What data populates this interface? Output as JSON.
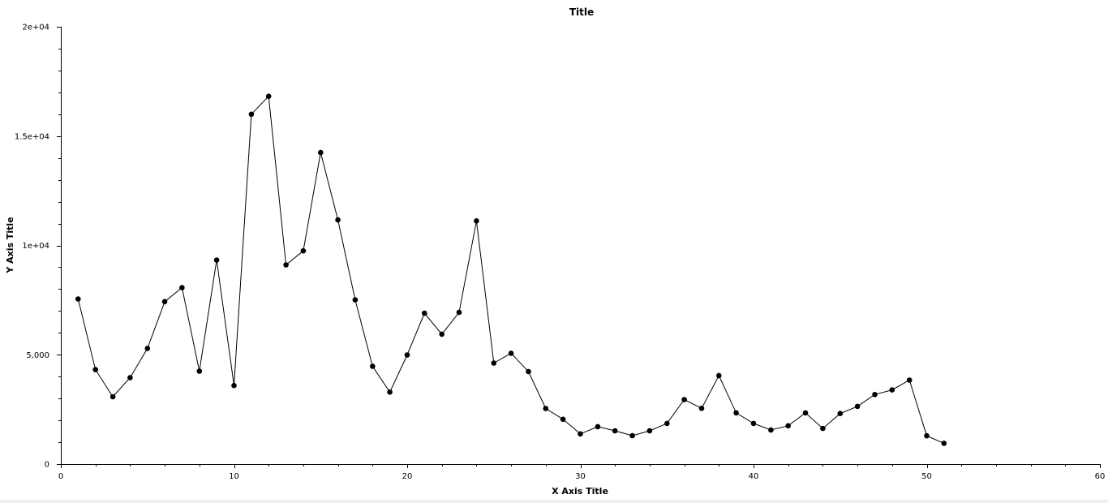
{
  "chart_data": {
    "type": "line",
    "title": "Title",
    "xlabel": "X Axis Title",
    "ylabel": "Y Axis Title",
    "xlim": [
      0,
      60
    ],
    "ylim": [
      0,
      20000
    ],
    "grid": false,
    "legend": "none",
    "x_ticks": [
      {
        "value": 0,
        "label": "0"
      },
      {
        "value": 10,
        "label": "10"
      },
      {
        "value": 20,
        "label": "20"
      },
      {
        "value": 30,
        "label": "30"
      },
      {
        "value": 40,
        "label": "40"
      },
      {
        "value": 50,
        "label": "50"
      },
      {
        "value": 60,
        "label": "60"
      }
    ],
    "y_ticks": [
      {
        "value": 0,
        "label": "0"
      },
      {
        "value": 5000,
        "label": "5,000"
      },
      {
        "value": 10000,
        "label": "1e+04"
      },
      {
        "value": 15000,
        "label": "1.5e+04"
      },
      {
        "value": 20000,
        "label": "2e+04"
      }
    ],
    "series": [
      {
        "color": "#000000",
        "marker": "circle",
        "x": [
          1,
          2,
          3,
          4,
          5,
          6,
          7,
          8,
          9,
          10,
          11,
          12,
          13,
          14,
          15,
          16,
          17,
          18,
          19,
          20,
          21,
          22,
          23,
          24,
          25,
          26,
          27,
          28,
          29,
          30,
          31,
          32,
          33,
          34,
          35,
          36,
          37,
          38,
          39,
          40,
          41,
          42,
          43,
          44,
          45,
          46,
          47,
          48,
          49,
          50,
          51
        ],
        "y": [
          7550,
          4320,
          3080,
          3950,
          5290,
          7430,
          8070,
          4250,
          9330,
          3590,
          16000,
          16820,
          9110,
          9750,
          14250,
          11170,
          7510,
          4470,
          3290,
          4990,
          6900,
          5940,
          6940,
          11120,
          4620,
          5070,
          4230,
          2540,
          2050,
          1380,
          1710,
          1520,
          1300,
          1520,
          1860,
          2950,
          2550,
          4050,
          2340,
          1860,
          1560,
          1750,
          2340,
          1630,
          2310,
          2640,
          3180,
          3390,
          3840,
          1290,
          950
        ]
      }
    ]
  }
}
